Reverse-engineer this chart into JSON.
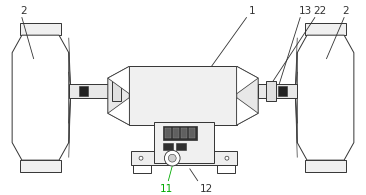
{
  "bg_color": "#ffffff",
  "line_color": "#333333",
  "green_color": "#00aa00",
  "fig_width": 3.66,
  "fig_height": 1.95,
  "dpi": 100
}
